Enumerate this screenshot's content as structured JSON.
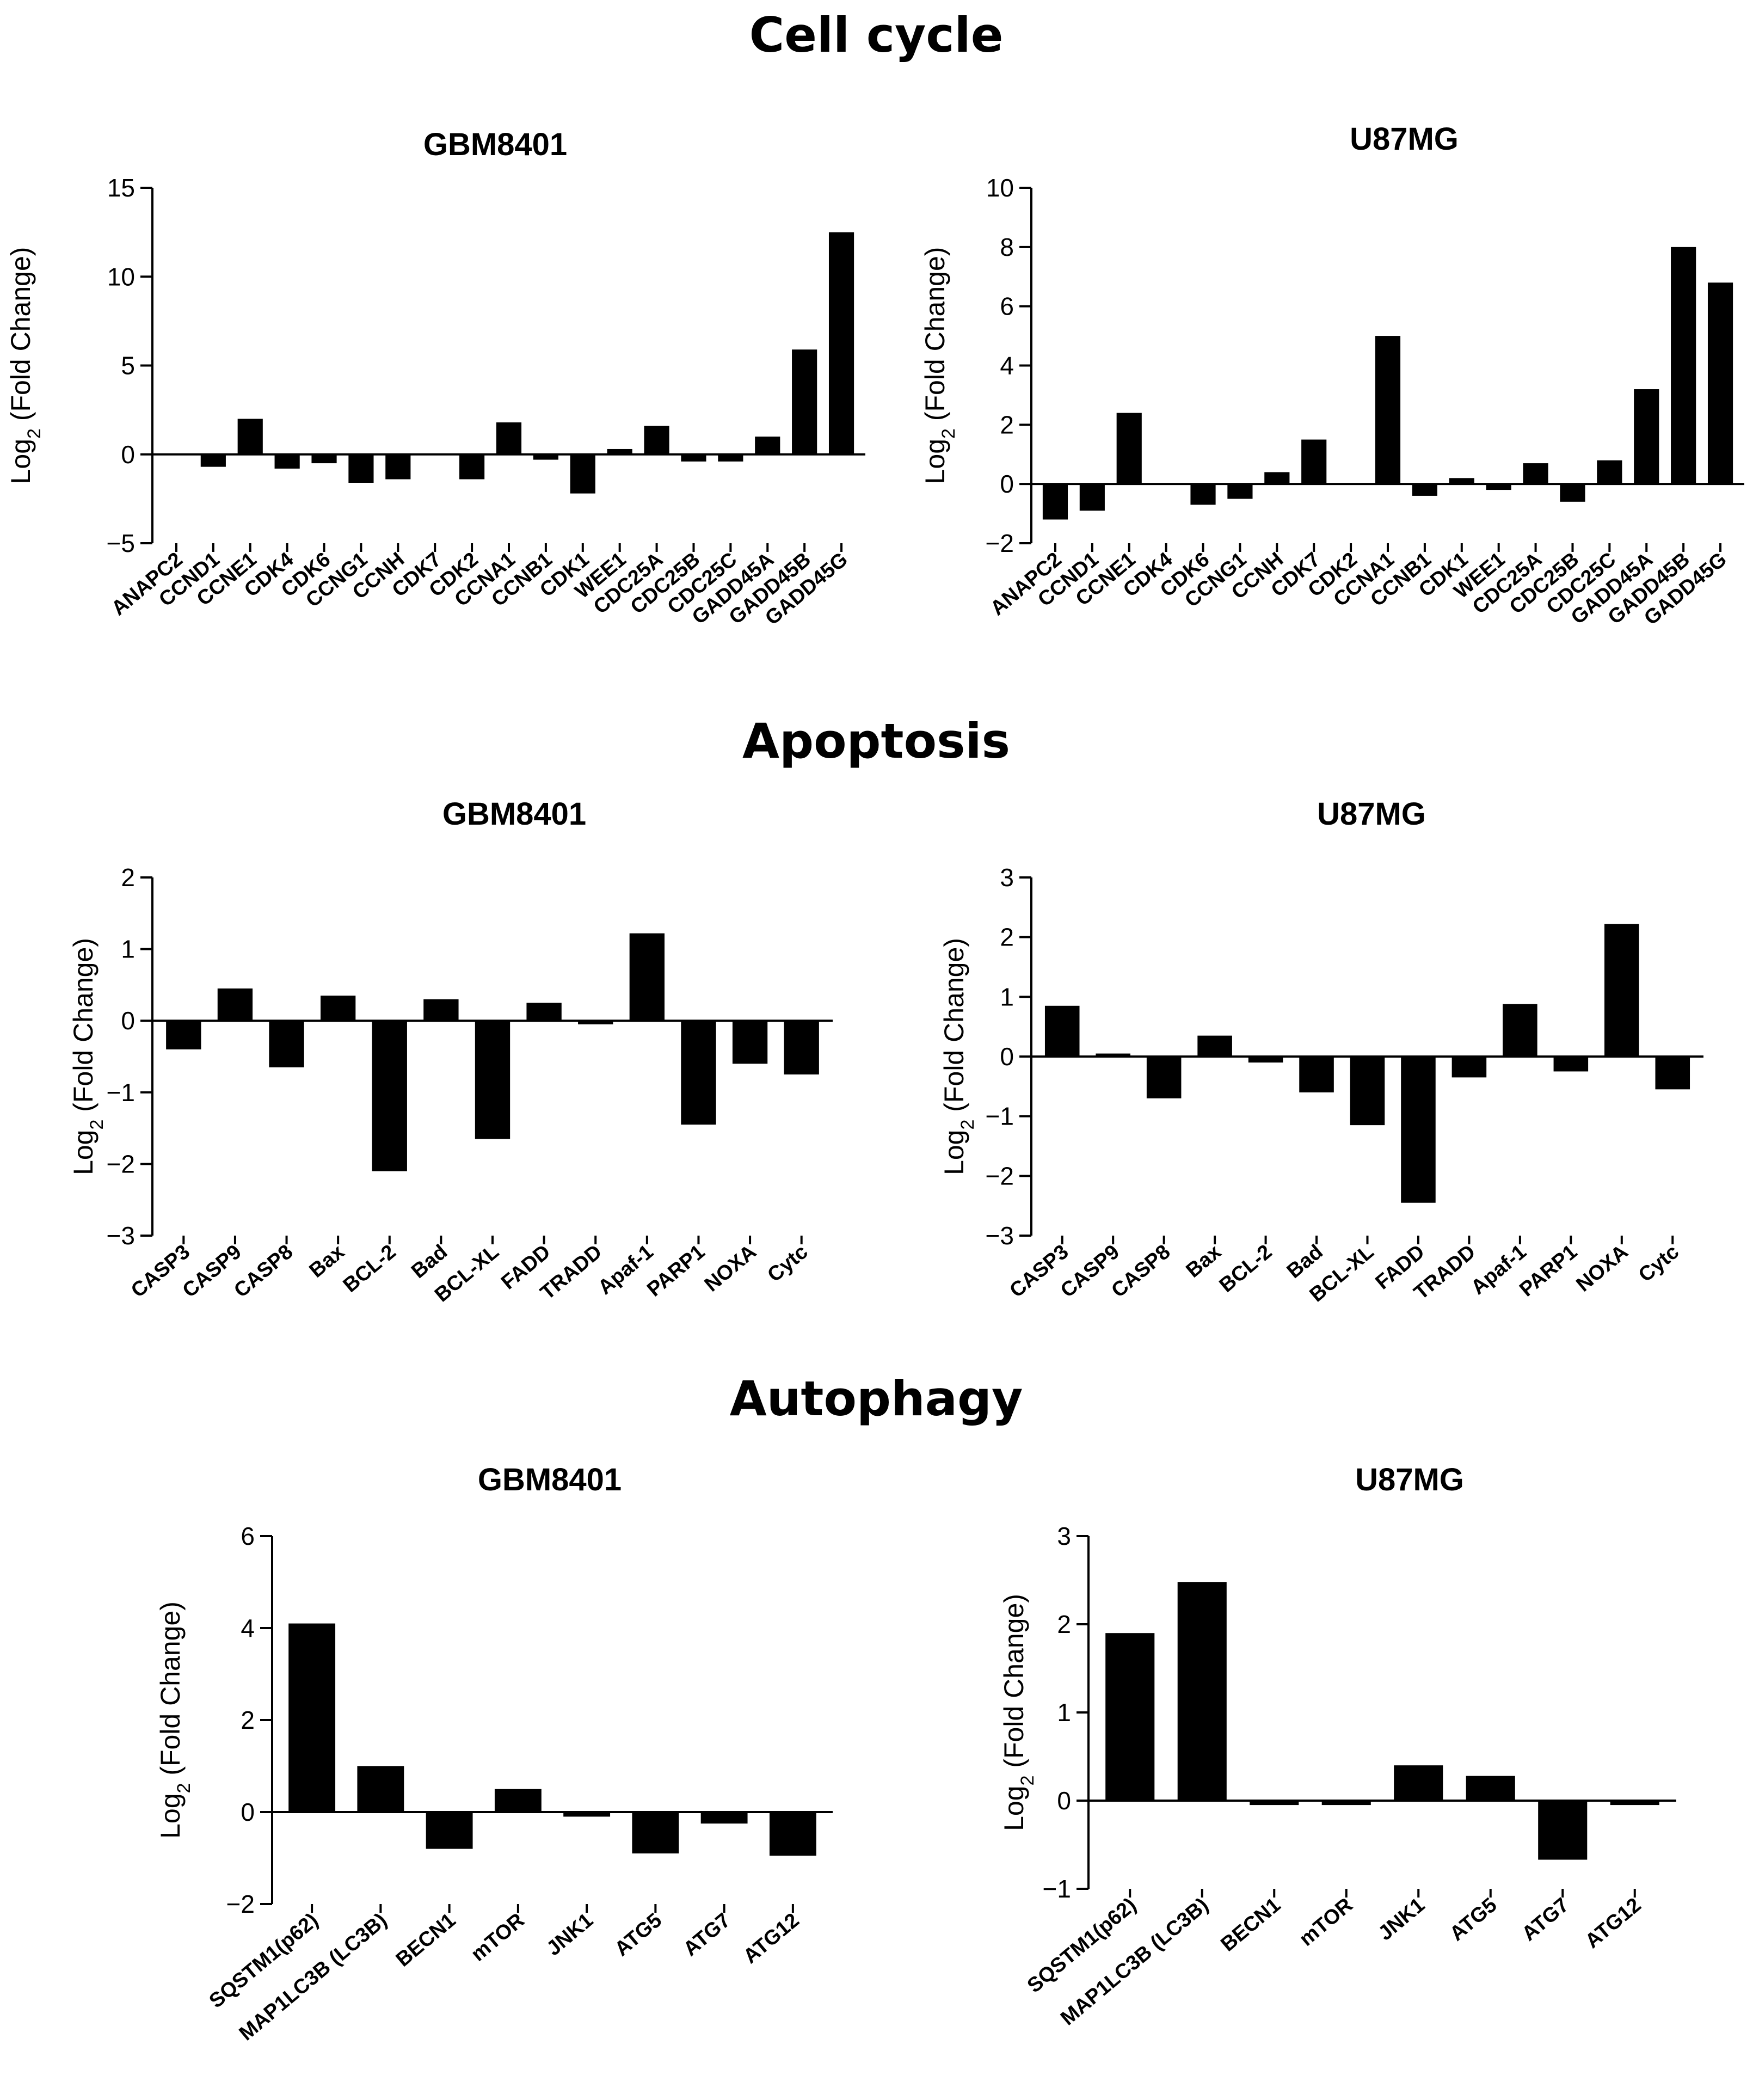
{
  "sections": [
    {
      "title": "Cell cycle",
      "panels": [
        {
          "title": "GBM8401",
          "chart_data": {
            "type": "bar",
            "title": "GBM8401",
            "ylabel": "Log2 (Fold Change)",
            "ylim": [
              -5,
              15
            ],
            "yticks": [
              -5,
              0,
              5,
              10,
              15
            ],
            "categories": [
              "ANAPC2",
              "CCND1",
              "CCNE1",
              "CDK4",
              "CDK6",
              "CCNG1",
              "CCNH",
              "CDK7",
              "CDK2",
              "CCNA1",
              "CCNB1",
              "CDK1",
              "WEE1",
              "CDC25A",
              "CDC25B",
              "CDC25C",
              "GADD45A",
              "GADD45B",
              "GADD45G"
            ],
            "values": [
              0,
              -0.7,
              2.0,
              -0.8,
              -0.5,
              -1.6,
              -1.4,
              0,
              -1.4,
              1.8,
              -0.3,
              -2.2,
              0.3,
              1.6,
              -0.4,
              -0.4,
              1.0,
              5.9,
              12.5
            ]
          }
        },
        {
          "title": "U87MG",
          "chart_data": {
            "type": "bar",
            "title": "U87MG",
            "ylabel": "Log2 (Fold Change)",
            "ylim": [
              -2,
              10
            ],
            "yticks": [
              -2,
              0,
              2,
              4,
              6,
              8,
              10
            ],
            "categories": [
              "ANAPC2",
              "CCND1",
              "CCNE1",
              "CDK4",
              "CDK6",
              "CCNG1",
              "CCNH",
              "CDK7",
              "CDK2",
              "CCNA1",
              "CCNB1",
              "CDK1",
              "WEE1",
              "CDC25A",
              "CDC25B",
              "CDC25C",
              "GADD45A",
              "GADD45B",
              "GADD45G"
            ],
            "values": [
              -1.2,
              -0.9,
              2.4,
              0,
              -0.7,
              -0.5,
              0.4,
              1.5,
              0,
              5.0,
              -0.4,
              0.2,
              -0.2,
              0.7,
              -0.6,
              0.8,
              3.2,
              8.0,
              6.8
            ]
          }
        }
      ]
    },
    {
      "title": "Apoptosis",
      "panels": [
        {
          "title": "GBM8401",
          "chart_data": {
            "type": "bar",
            "title": "GBM8401",
            "ylabel": "Log2 (Fold Change)",
            "ylim": [
              -3,
              2
            ],
            "yticks": [
              -3,
              -2,
              -1,
              0,
              1,
              2
            ],
            "categories": [
              "CASP3",
              "CASP9",
              "CASP8",
              "Bax",
              "BCL-2",
              "Bad",
              "BCL-XL",
              "FADD",
              "TRADD",
              "Apaf-1",
              "PARP1",
              "NOXA",
              "Cytc"
            ],
            "values": [
              -0.4,
              0.45,
              -0.65,
              0.35,
              -2.1,
              0.3,
              -1.65,
              0.25,
              -0.05,
              1.22,
              -1.45,
              -0.6,
              -0.75
            ]
          }
        },
        {
          "title": "U87MG",
          "chart_data": {
            "type": "bar",
            "title": "U87MG",
            "ylabel": "Log2 (Fold Change)",
            "ylim": [
              -3,
              3
            ],
            "yticks": [
              -3,
              -2,
              -1,
              0,
              1,
              2,
              3
            ],
            "categories": [
              "CASP3",
              "CASP9",
              "CASP8",
              "Bax",
              "BCL-2",
              "Bad",
              "BCL-XL",
              "FADD",
              "TRADD",
              "Apaf-1",
              "PARP1",
              "NOXA",
              "Cytc"
            ],
            "values": [
              0.85,
              0.05,
              -0.7,
              0.35,
              -0.1,
              -0.6,
              -1.15,
              -2.45,
              -0.35,
              0.88,
              -0.25,
              2.22,
              -0.55
            ]
          }
        }
      ]
    },
    {
      "title": "Autophagy",
      "panels": [
        {
          "title": "GBM8401",
          "chart_data": {
            "type": "bar",
            "title": "GBM8401",
            "ylabel": "Log2 (Fold Change)",
            "ylim": [
              -2,
              6
            ],
            "yticks": [
              -2,
              0,
              2,
              4,
              6
            ],
            "categories": [
              "SQSTM1(p62)",
              "MAP1LC3B (LC3B)",
              "BECN1",
              "mTOR",
              "JNK1",
              "ATG5",
              "ATG7",
              "ATG12"
            ],
            "values": [
              4.1,
              1.0,
              -0.8,
              0.5,
              -0.1,
              -0.9,
              -0.25,
              -0.95
            ]
          }
        },
        {
          "title": "U87MG",
          "chart_data": {
            "type": "bar",
            "title": "U87MG",
            "ylabel": "Log2 (Fold Change)",
            "ylim": [
              -1,
              3
            ],
            "yticks": [
              -1,
              0,
              1,
              2,
              3
            ],
            "categories": [
              "SQSTM1(p62)",
              "MAP1LC3B (LC3B)",
              "BECN1",
              "mTOR",
              "JNK1",
              "ATG5",
              "ATG7",
              "ATG12"
            ],
            "values": [
              1.9,
              2.48,
              -0.05,
              -0.05,
              0.4,
              0.28,
              -0.67,
              -0.05
            ]
          }
        }
      ]
    }
  ]
}
